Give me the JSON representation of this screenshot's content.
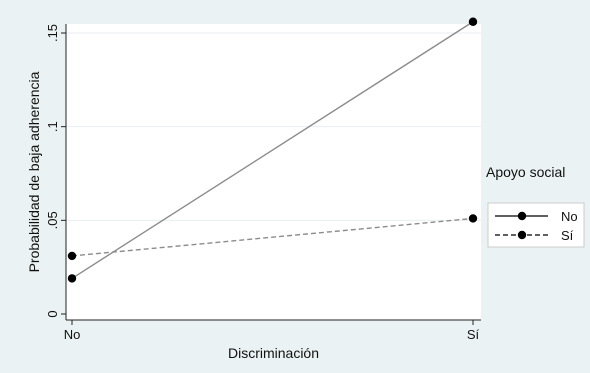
{
  "chart_data": {
    "type": "line",
    "categories": [
      "No",
      "Sí"
    ],
    "xlabel": "Discriminación",
    "ylabel": "Probabilidad de baja adherencia",
    "ylim": [
      0,
      0.16
    ],
    "yticks": [
      {
        "value": 0,
        "label": "0"
      },
      {
        "value": 0.05,
        "label": ".05"
      },
      {
        "value": 0.1,
        "label": ".1"
      },
      {
        "value": 0.15,
        "label": ".15"
      }
    ],
    "grid": true,
    "legend": {
      "title": "Apoyo social",
      "placement": "right"
    },
    "series": [
      {
        "name": "No",
        "values": [
          0.019,
          0.156
        ],
        "color": "#8c8c8c",
        "dash": "solid"
      },
      {
        "name": "Sí",
        "values": [
          0.031,
          0.051
        ],
        "color": "#8c8c8c",
        "dash": "dashed"
      }
    ]
  }
}
